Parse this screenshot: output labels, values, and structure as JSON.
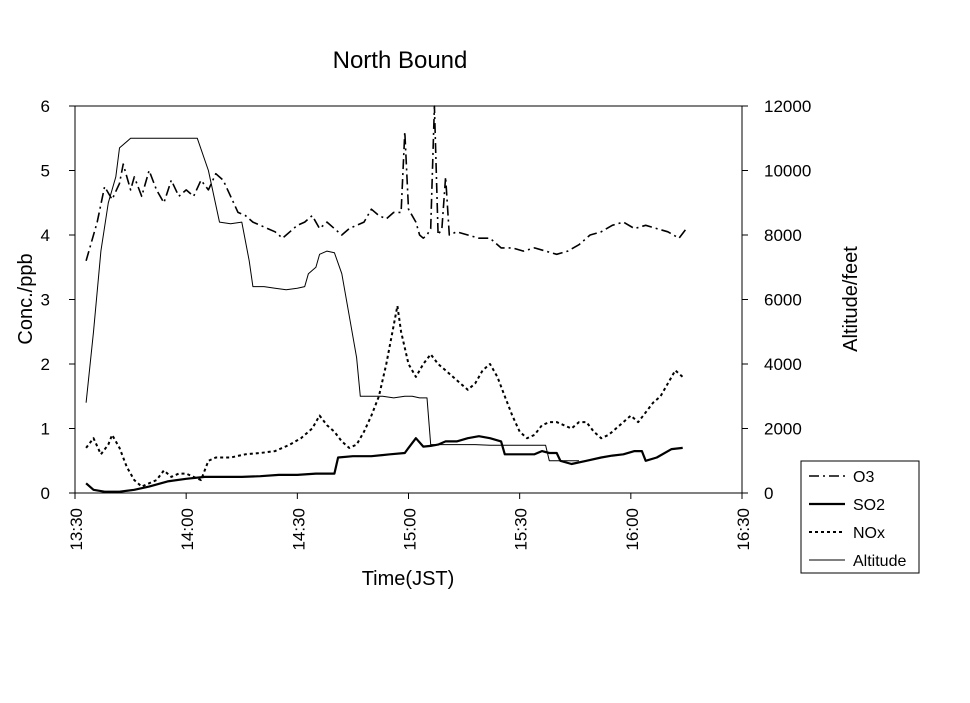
{
  "chart_data": {
    "type": "line",
    "title": "North Bound",
    "xlabel": "Time(JST)",
    "ylabel": "Conc./ppb",
    "y2label": "Altitude/feet",
    "x_ticks": [
      "13:30",
      "14:00",
      "14:30",
      "15:00",
      "15:30",
      "16:00",
      "16:30"
    ],
    "x_range_minutes": [
      810,
      990
    ],
    "ylim": [
      0,
      6
    ],
    "y_ticks": [
      "0",
      "1",
      "2",
      "3",
      "4",
      "5",
      "6"
    ],
    "y2lim": [
      0,
      12000
    ],
    "y2_ticks": [
      "0",
      "2000",
      "4000",
      "6000",
      "8000",
      "10000",
      "12000"
    ],
    "legend_position": "bottom-right",
    "series": [
      {
        "name": "O3",
        "axis": "left",
        "style": "dashdot",
        "points": [
          [
            813,
            3.6
          ],
          [
            816,
            4.2
          ],
          [
            818,
            4.75
          ],
          [
            820,
            4.55
          ],
          [
            822,
            4.8
          ],
          [
            823,
            5.1
          ],
          [
            825,
            4.7
          ],
          [
            826,
            4.9
          ],
          [
            828,
            4.6
          ],
          [
            830,
            5.0
          ],
          [
            832,
            4.7
          ],
          [
            834,
            4.5
          ],
          [
            836,
            4.85
          ],
          [
            838,
            4.6
          ],
          [
            840,
            4.7
          ],
          [
            842,
            4.6
          ],
          [
            844,
            4.85
          ],
          [
            846,
            4.7
          ],
          [
            848,
            4.95
          ],
          [
            850,
            4.85
          ],
          [
            852,
            4.6
          ],
          [
            854,
            4.35
          ],
          [
            856,
            4.3
          ],
          [
            858,
            4.2
          ],
          [
            860,
            4.15
          ],
          [
            862,
            4.1
          ],
          [
            864,
            4.05
          ],
          [
            866,
            3.95
          ],
          [
            868,
            4.05
          ],
          [
            870,
            4.15
          ],
          [
            872,
            4.2
          ],
          [
            874,
            4.3
          ],
          [
            876,
            4.1
          ],
          [
            878,
            4.2
          ],
          [
            880,
            4.1
          ],
          [
            882,
            4.0
          ],
          [
            884,
            4.1
          ],
          [
            886,
            4.15
          ],
          [
            888,
            4.2
          ],
          [
            890,
            4.4
          ],
          [
            892,
            4.3
          ],
          [
            894,
            4.25
          ],
          [
            896,
            4.35
          ],
          [
            898,
            4.35
          ],
          [
            899,
            5.6
          ],
          [
            900,
            4.4
          ],
          [
            902,
            4.2
          ],
          [
            903,
            4.0
          ],
          [
            904,
            3.95
          ],
          [
            905,
            4.0
          ],
          [
            906,
            4.1
          ],
          [
            907,
            6.0
          ],
          [
            908,
            4.0
          ],
          [
            909,
            4.1
          ],
          [
            910,
            4.9
          ],
          [
            911,
            4.0
          ],
          [
            913,
            4.05
          ],
          [
            916,
            4.0
          ],
          [
            919,
            3.95
          ],
          [
            922,
            3.95
          ],
          [
            925,
            3.8
          ],
          [
            928,
            3.8
          ],
          [
            931,
            3.75
          ],
          [
            934,
            3.8
          ],
          [
            937,
            3.75
          ],
          [
            940,
            3.7
          ],
          [
            943,
            3.75
          ],
          [
            946,
            3.85
          ],
          [
            949,
            4.0
          ],
          [
            952,
            4.05
          ],
          [
            955,
            4.15
          ],
          [
            958,
            4.2
          ],
          [
            961,
            4.1
          ],
          [
            964,
            4.15
          ],
          [
            967,
            4.1
          ],
          [
            970,
            4.05
          ],
          [
            973,
            3.95
          ],
          [
            975,
            4.1
          ]
        ]
      },
      {
        "name": "SO2",
        "axis": "left",
        "style": "solid-bold",
        "points": [
          [
            813,
            0.15
          ],
          [
            815,
            0.05
          ],
          [
            818,
            0.02
          ],
          [
            822,
            0.02
          ],
          [
            826,
            0.05
          ],
          [
            830,
            0.1
          ],
          [
            835,
            0.18
          ],
          [
            840,
            0.22
          ],
          [
            845,
            0.25
          ],
          [
            850,
            0.25
          ],
          [
            855,
            0.25
          ],
          [
            860,
            0.26
          ],
          [
            865,
            0.28
          ],
          [
            870,
            0.28
          ],
          [
            875,
            0.3
          ],
          [
            880,
            0.3
          ],
          [
            881,
            0.55
          ],
          [
            885,
            0.57
          ],
          [
            890,
            0.57
          ],
          [
            895,
            0.6
          ],
          [
            899,
            0.62
          ],
          [
            900,
            0.7
          ],
          [
            902,
            0.85
          ],
          [
            904,
            0.72
          ],
          [
            906,
            0.73
          ],
          [
            908,
            0.75
          ],
          [
            910,
            0.8
          ],
          [
            913,
            0.8
          ],
          [
            916,
            0.85
          ],
          [
            919,
            0.88
          ],
          [
            922,
            0.85
          ],
          [
            925,
            0.8
          ],
          [
            926,
            0.6
          ],
          [
            930,
            0.6
          ],
          [
            934,
            0.6
          ],
          [
            936,
            0.65
          ],
          [
            938,
            0.62
          ],
          [
            940,
            0.62
          ],
          [
            941,
            0.5
          ],
          [
            944,
            0.45
          ],
          [
            948,
            0.5
          ],
          [
            952,
            0.55
          ],
          [
            955,
            0.58
          ],
          [
            958,
            0.6
          ],
          [
            961,
            0.65
          ],
          [
            963,
            0.65
          ],
          [
            964,
            0.5
          ],
          [
            967,
            0.55
          ],
          [
            971,
            0.68
          ],
          [
            974,
            0.7
          ]
        ]
      },
      {
        "name": "NOx",
        "axis": "left",
        "style": "dotted",
        "points": [
          [
            813,
            0.7
          ],
          [
            815,
            0.85
          ],
          [
            817,
            0.6
          ],
          [
            819,
            0.75
          ],
          [
            820,
            0.9
          ],
          [
            822,
            0.7
          ],
          [
            824,
            0.4
          ],
          [
            826,
            0.2
          ],
          [
            828,
            0.1
          ],
          [
            830,
            0.15
          ],
          [
            832,
            0.2
          ],
          [
            834,
            0.35
          ],
          [
            836,
            0.25
          ],
          [
            838,
            0.3
          ],
          [
            840,
            0.3
          ],
          [
            842,
            0.25
          ],
          [
            844,
            0.2
          ],
          [
            846,
            0.5
          ],
          [
            848,
            0.55
          ],
          [
            852,
            0.55
          ],
          [
            856,
            0.6
          ],
          [
            860,
            0.62
          ],
          [
            864,
            0.65
          ],
          [
            868,
            0.75
          ],
          [
            871,
            0.85
          ],
          [
            874,
            1.0
          ],
          [
            876,
            1.2
          ],
          [
            878,
            1.05
          ],
          [
            880,
            0.95
          ],
          [
            882,
            0.8
          ],
          [
            884,
            0.7
          ],
          [
            886,
            0.75
          ],
          [
            888,
            0.95
          ],
          [
            890,
            1.2
          ],
          [
            892,
            1.5
          ],
          [
            894,
            2.0
          ],
          [
            896,
            2.6
          ],
          [
            897,
            2.9
          ],
          [
            898,
            2.5
          ],
          [
            900,
            2.0
          ],
          [
            902,
            1.8
          ],
          [
            904,
            2.0
          ],
          [
            906,
            2.15
          ],
          [
            908,
            2.0
          ],
          [
            910,
            1.9
          ],
          [
            912,
            1.8
          ],
          [
            914,
            1.7
          ],
          [
            916,
            1.6
          ],
          [
            918,
            1.7
          ],
          [
            920,
            1.9
          ],
          [
            922,
            2.0
          ],
          [
            924,
            1.8
          ],
          [
            926,
            1.5
          ],
          [
            928,
            1.2
          ],
          [
            930,
            0.95
          ],
          [
            932,
            0.85
          ],
          [
            934,
            0.9
          ],
          [
            936,
            1.05
          ],
          [
            938,
            1.1
          ],
          [
            940,
            1.1
          ],
          [
            942,
            1.05
          ],
          [
            944,
            1.0
          ],
          [
            946,
            1.1
          ],
          [
            948,
            1.1
          ],
          [
            950,
            0.95
          ],
          [
            952,
            0.85
          ],
          [
            954,
            0.9
          ],
          [
            956,
            1.0
          ],
          [
            958,
            1.1
          ],
          [
            960,
            1.2
          ],
          [
            962,
            1.1
          ],
          [
            964,
            1.25
          ],
          [
            966,
            1.4
          ],
          [
            968,
            1.5
          ],
          [
            970,
            1.7
          ],
          [
            972,
            1.9
          ],
          [
            974,
            1.8
          ]
        ]
      },
      {
        "name": "Altitude",
        "axis": "right",
        "style": "solid-thin",
        "points": [
          [
            813,
            2800
          ],
          [
            815,
            5000
          ],
          [
            817,
            7500
          ],
          [
            819,
            9000
          ],
          [
            821,
            9800
          ],
          [
            822,
            10700
          ],
          [
            825,
            11000
          ],
          [
            830,
            11000
          ],
          [
            835,
            11000
          ],
          [
            840,
            11000
          ],
          [
            843,
            11000
          ],
          [
            846,
            10000
          ],
          [
            849,
            8400
          ],
          [
            852,
            8350
          ],
          [
            855,
            8400
          ],
          [
            857,
            7200
          ],
          [
            858,
            6400
          ],
          [
            861,
            6400
          ],
          [
            864,
            6350
          ],
          [
            867,
            6300
          ],
          [
            870,
            6350
          ],
          [
            872,
            6400
          ],
          [
            873,
            6800
          ],
          [
            875,
            7000
          ],
          [
            876,
            7400
          ],
          [
            878,
            7500
          ],
          [
            880,
            7450
          ],
          [
            882,
            6800
          ],
          [
            884,
            5500
          ],
          [
            886,
            4200
          ],
          [
            887,
            3000
          ],
          [
            890,
            3000
          ],
          [
            893,
            3000
          ],
          [
            896,
            2950
          ],
          [
            899,
            3000
          ],
          [
            901,
            3000
          ],
          [
            903,
            2950
          ],
          [
            905,
            2950
          ],
          [
            906,
            1500
          ],
          [
            910,
            1500
          ],
          [
            914,
            1500
          ],
          [
            918,
            1500
          ],
          [
            922,
            1480
          ],
          [
            926,
            1480
          ],
          [
            930,
            1480
          ],
          [
            934,
            1480
          ],
          [
            937,
            1480
          ],
          [
            938,
            1000
          ],
          [
            942,
            1000
          ],
          [
            946,
            1000
          ]
        ]
      }
    ]
  }
}
